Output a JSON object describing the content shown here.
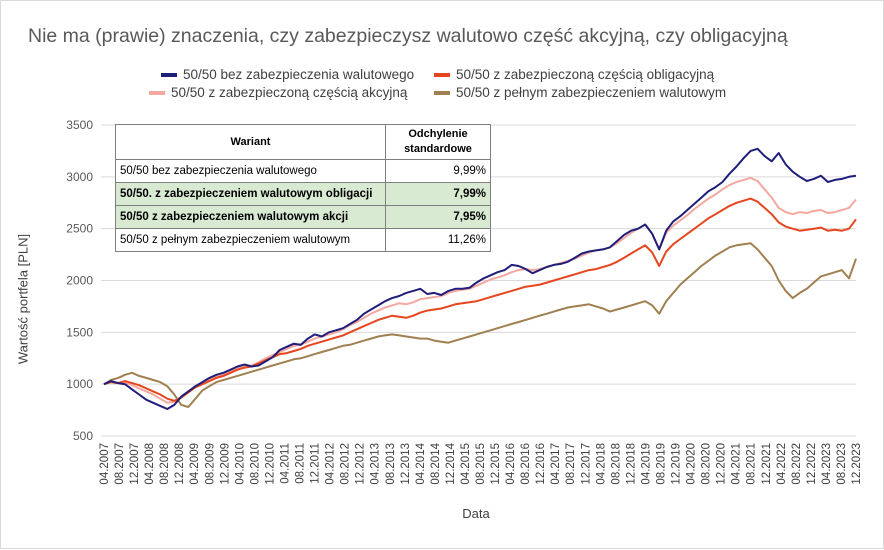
{
  "title": "Nie ma (prawie) znaczenia, czy zabezpieczysz walutowo część akcyjną, czy obligacyjną",
  "chart_data": {
    "type": "line",
    "title": "Nie ma (prawie) znaczenia, czy zabezpieczysz walutowo część akcyjną, czy obligacyjną",
    "xlabel": "Data",
    "ylabel": "Wartość portfela [PLN]",
    "ylim": [
      500,
      3500
    ],
    "yticks": [
      500,
      1000,
      1500,
      2000,
      2500,
      3000,
      3500
    ],
    "xticks": [
      "04.2007",
      "08.2007",
      "12.2007",
      "04.2008",
      "08.2008",
      "12.2008",
      "04.2009",
      "08.2009",
      "12.2009",
      "04.2010",
      "08.2010",
      "12.2010",
      "04.2011",
      "08.2011",
      "12.2011",
      "04.2012",
      "08.2012",
      "12.2012",
      "04.2013",
      "08.2013",
      "12.2013",
      "04.2014",
      "08.2014",
      "12.2014",
      "04.2015",
      "08.2015",
      "12.2015",
      "04.2016",
      "08.2016",
      "12.2016",
      "04.2017",
      "08.2017",
      "12.2017",
      "04.2018",
      "08.2018",
      "12.2018",
      "04.2019",
      "08.2019",
      "12.2019",
      "04.2020",
      "08.2020",
      "12.2020",
      "04.2021",
      "08.2021",
      "12.2021",
      "04.2022",
      "08.2022",
      "12.2022",
      "04.2023",
      "08.2023",
      "12.2023"
    ],
    "grid": "horizontal",
    "legend_position": "top",
    "series": [
      {
        "name": "50/50 bez zabezpieczenia walutowego",
        "color": "#1f1e7a",
        "values": [
          1000,
          1030,
          1010,
          1000,
          950,
          900,
          850,
          820,
          790,
          760,
          800,
          880,
          930,
          980,
          1020,
          1060,
          1090,
          1110,
          1140,
          1170,
          1190,
          1170,
          1180,
          1220,
          1260,
          1330,
          1360,
          1390,
          1380,
          1440,
          1480,
          1460,
          1500,
          1520,
          1540,
          1580,
          1620,
          1680,
          1720,
          1760,
          1800,
          1830,
          1850,
          1880,
          1900,
          1920,
          1870,
          1880,
          1860,
          1900,
          1920,
          1920,
          1930,
          1980,
          2020,
          2050,
          2080,
          2100,
          2150,
          2140,
          2110,
          2070,
          2100,
          2130,
          2150,
          2160,
          2180,
          2220,
          2260,
          2280,
          2290,
          2300,
          2320,
          2380,
          2440,
          2480,
          2500,
          2540,
          2450,
          2300,
          2480,
          2570,
          2620,
          2680,
          2740,
          2800,
          2860,
          2900,
          2950,
          3030,
          3100,
          3180,
          3250,
          3270,
          3200,
          3150,
          3230,
          3120,
          3050,
          3000,
          2960,
          2980,
          3010,
          2950,
          2970,
          2980,
          3000,
          3010
        ]
      },
      {
        "name": "50/50 z zabezpieczoną częścią obligacyjną",
        "color": "#e6461e",
        "values": [
          1000,
          1020,
          1010,
          1030,
          1010,
          990,
          960,
          930,
          900,
          860,
          840,
          870,
          920,
          970,
          1000,
          1030,
          1060,
          1080,
          1110,
          1140,
          1160,
          1170,
          1200,
          1230,
          1260,
          1290,
          1300,
          1320,
          1340,
          1370,
          1390,
          1410,
          1430,
          1450,
          1470,
          1500,
          1530,
          1560,
          1590,
          1620,
          1640,
          1660,
          1650,
          1640,
          1660,
          1690,
          1710,
          1720,
          1730,
          1750,
          1770,
          1780,
          1790,
          1800,
          1820,
          1840,
          1860,
          1880,
          1900,
          1920,
          1940,
          1950,
          1960,
          1980,
          2000,
          2020,
          2040,
          2060,
          2080,
          2100,
          2110,
          2130,
          2150,
          2180,
          2220,
          2260,
          2300,
          2340,
          2270,
          2140,
          2280,
          2350,
          2400,
          2450,
          2500,
          2550,
          2600,
          2640,
          2680,
          2720,
          2750,
          2770,
          2790,
          2760,
          2700,
          2640,
          2560,
          2520,
          2500,
          2480,
          2490,
          2500,
          2510,
          2480,
          2490,
          2480,
          2500,
          2590
        ]
      },
      {
        "name": "50/50 z zabezpieczoną częścią akcyjną",
        "color": "#f4a8a0",
        "values": [
          1000,
          1020,
          1015,
          1020,
          990,
          960,
          930,
          900,
          860,
          820,
          830,
          880,
          930,
          970,
          1010,
          1040,
          1070,
          1090,
          1120,
          1150,
          1170,
          1180,
          1210,
          1250,
          1280,
          1310,
          1340,
          1370,
          1380,
          1410,
          1440,
          1460,
          1480,
          1500,
          1530,
          1570,
          1600,
          1640,
          1680,
          1710,
          1740,
          1760,
          1780,
          1770,
          1790,
          1820,
          1830,
          1840,
          1850,
          1880,
          1900,
          1910,
          1920,
          1950,
          1980,
          2010,
          2030,
          2050,
          2080,
          2100,
          2110,
          2100,
          2110,
          2130,
          2150,
          2170,
          2190,
          2210,
          2240,
          2270,
          2290,
          2300,
          2320,
          2360,
          2410,
          2460,
          2500,
          2540,
          2450,
          2300,
          2460,
          2530,
          2580,
          2630,
          2690,
          2740,
          2790,
          2830,
          2880,
          2920,
          2950,
          2970,
          2990,
          2960,
          2880,
          2800,
          2700,
          2660,
          2640,
          2660,
          2650,
          2670,
          2680,
          2650,
          2660,
          2680,
          2700,
          2780
        ]
      },
      {
        "name": "50/50 z pełnym zabezpieczeniem walutowym",
        "color": "#a08050",
        "values": [
          1000,
          1040,
          1060,
          1090,
          1110,
          1080,
          1060,
          1040,
          1020,
          980,
          900,
          800,
          780,
          860,
          940,
          980,
          1020,
          1040,
          1060,
          1080,
          1100,
          1120,
          1140,
          1160,
          1180,
          1200,
          1220,
          1240,
          1250,
          1270,
          1290,
          1310,
          1330,
          1350,
          1370,
          1380,
          1400,
          1420,
          1440,
          1460,
          1470,
          1480,
          1470,
          1460,
          1450,
          1440,
          1440,
          1420,
          1410,
          1400,
          1420,
          1440,
          1460,
          1480,
          1500,
          1520,
          1540,
          1560,
          1580,
          1600,
          1620,
          1640,
          1660,
          1680,
          1700,
          1720,
          1740,
          1750,
          1760,
          1770,
          1750,
          1730,
          1700,
          1720,
          1740,
          1760,
          1780,
          1800,
          1760,
          1680,
          1800,
          1880,
          1960,
          2020,
          2080,
          2140,
          2190,
          2240,
          2280,
          2320,
          2340,
          2350,
          2360,
          2300,
          2220,
          2140,
          2000,
          1900,
          1830,
          1880,
          1920,
          1980,
          2040,
          2060,
          2080,
          2100,
          2020,
          2210
        ]
      }
    ]
  },
  "table": {
    "header": {
      "col1": "Wariant",
      "col2": "Odchylenie standardowe"
    },
    "rows": [
      {
        "label": "50/50 bez zabezpieczenia walutowego",
        "value": "9,99%"
      },
      {
        "label": "50/50. z zabezpieczeniem walutowym obligacji",
        "value": "7,99%"
      },
      {
        "label": "50/50 z zabezpieczeniem walutowym akcji",
        "value": "7,95%"
      },
      {
        "label": "50/50 z pełnym zabezpieczeniem walutowym",
        "value": "11,26%"
      }
    ]
  }
}
